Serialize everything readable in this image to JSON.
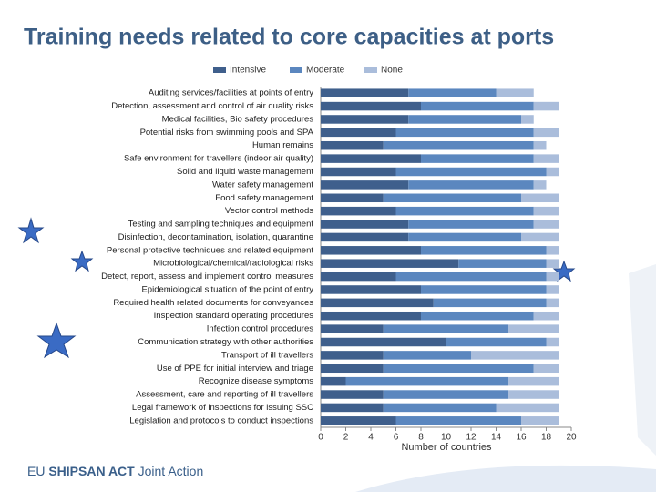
{
  "chart_data": {
    "type": "stacked-barh",
    "title": "Training needs related to core capacities at ports",
    "x_label": "Number of countries",
    "categories": [
      "Auditing services/facilities at points of entry",
      "Detection, assessment and control of air quality risks",
      "Medical facilities, Bio safety procedures",
      "Potential risks from swimming pools and SPA",
      "Human remains",
      "Safe environment for travellers (indoor air quality)",
      "Solid and liquid waste management",
      "Water safety management",
      "Food safety management",
      "Vector control methods",
      "Testing and sampling techniques and equipment",
      "Disinfection, decontamination, isolation, quarantine",
      "Personal protective techniques and related equipment",
      "Microbiological/chemical/radiological risks",
      "Detect, report, assess and implement control measures",
      "Epidemiological situation of the point of entry",
      "Required health related documents for conveyances",
      "Inspection standard operating procedures",
      "Infection control procedures",
      "Communication strategy with other authorities",
      "Transport of ill travellers",
      "Use of PPE for initial interview and triage",
      "Recognize disease symptoms",
      "Assessment, care and reporting of ill travellers",
      "Legal framework of inspections for issuing SSC",
      "Legislation and protocols to conduct inspections"
    ],
    "series": [
      {
        "name": "Intensive",
        "color": "#3f5f8c",
        "values": [
          7,
          8,
          7,
          6,
          5,
          8,
          6,
          7,
          5,
          6,
          7,
          7,
          8,
          11,
          6,
          8,
          9,
          8,
          5,
          10,
          5,
          5,
          2,
          5,
          5,
          6
        ]
      },
      {
        "name": "Moderate",
        "color": "#5b87bf",
        "values": [
          7,
          9,
          9,
          11,
          12,
          9,
          12,
          10,
          11,
          11,
          10,
          9,
          10,
          7,
          12,
          10,
          9,
          9,
          10,
          8,
          7,
          12,
          13,
          10,
          9,
          10
        ]
      },
      {
        "name": "None",
        "color": "#aabddb",
        "values": [
          3,
          2,
          1,
          2,
          1,
          2,
          1,
          1,
          3,
          2,
          2,
          3,
          1,
          1,
          1,
          1,
          1,
          2,
          4,
          1,
          7,
          2,
          4,
          4,
          5,
          3
        ]
      }
    ],
    "xlim": [
      0,
      20
    ],
    "xticks": [
      0,
      2,
      4,
      6,
      8,
      10,
      12,
      14,
      16,
      18,
      20
    ]
  },
  "footer": {
    "prefix": "EU",
    "brand": "SHIPSAN ACT",
    "suffix": "Joint Action"
  }
}
